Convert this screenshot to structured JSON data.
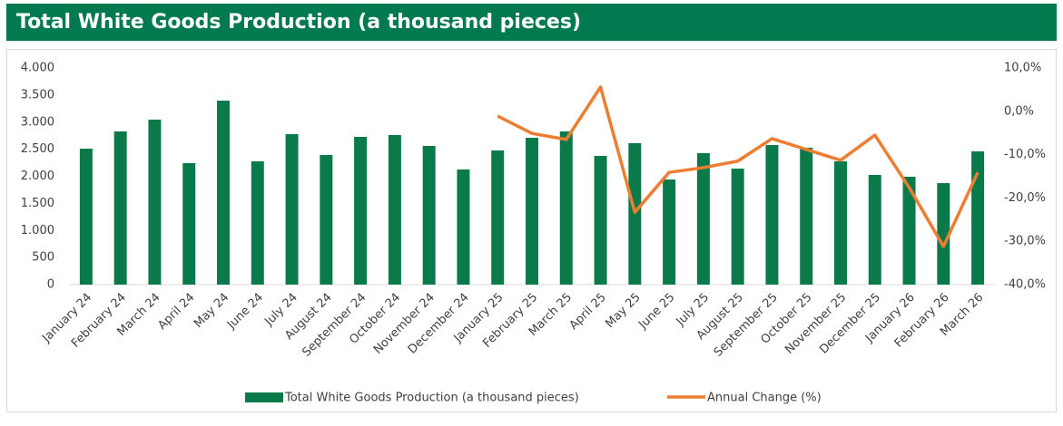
{
  "chart_data": {
    "type": "bar",
    "title": "Total White Goods Production (a thousand pieces)",
    "categories": [
      "January 24",
      "February 24",
      "March 24",
      "April 24",
      "May 24",
      "June 24",
      "July 24",
      "August 24",
      "September 24",
      "October 24",
      "November 24",
      "December 24",
      "January 25",
      "February 25",
      "March 25",
      "April 25",
      "May 25",
      "June 25",
      "July 25",
      "August 25",
      "September 25",
      "October 25",
      "November 25",
      "December 25",
      "January 26",
      "February 26",
      "March 26"
    ],
    "series": [
      {
        "name": "Total White Goods Production (a thousand pieces)",
        "color": "#0b7a4b",
        "type": "bar",
        "values": [
          2510,
          2828,
          3046,
          2243,
          3397,
          2276,
          2778,
          2393,
          2728,
          2762,
          2561,
          2126,
          2477,
          2711,
          2828,
          2377,
          2611,
          1941,
          2427,
          2142,
          2577,
          2527,
          2276,
          2025,
          1992,
          1874,
          2460
        ]
      },
      {
        "name": "Annual Change (%)",
        "color": "#ed7d31",
        "type": "line",
        "axis": "y2",
        "values": [
          null,
          null,
          null,
          null,
          null,
          null,
          null,
          null,
          null,
          null,
          null,
          null,
          -1.1,
          -5.1,
          -6.5,
          5.6,
          -23.3,
          -14.1,
          -13.0,
          -11.5,
          -6.3,
          -8.8,
          -11.3,
          -5.5,
          -17.6,
          -31.2,
          -14.1
        ]
      }
    ],
    "ylim": [
      0,
      4000
    ],
    "yticks": [
      0,
      500,
      {
        "value": 1000,
        "label": "1.000"
      },
      {
        "value": 1500,
        "label": "1.500"
      },
      {
        "value": 2000,
        "label": "2.000"
      },
      {
        "value": 2500,
        "label": "2.500"
      },
      {
        "value": 3000,
        "label": "3.000"
      },
      {
        "value": 3500,
        "label": "3.500"
      },
      {
        "value": 4000,
        "label": "4.000"
      }
    ],
    "y2lim": [
      -40,
      10
    ],
    "y2ticks": [
      {
        "value": -40,
        "label": "-40,0%"
      },
      {
        "value": -30,
        "label": "-30,0%"
      },
      {
        "value": -20,
        "label": "-20,0%"
      },
      {
        "value": -10,
        "label": "-10,0%"
      },
      {
        "value": 0,
        "label": "0,0%"
      },
      {
        "value": 10,
        "label": "10,0%"
      }
    ],
    "grid": false
  }
}
